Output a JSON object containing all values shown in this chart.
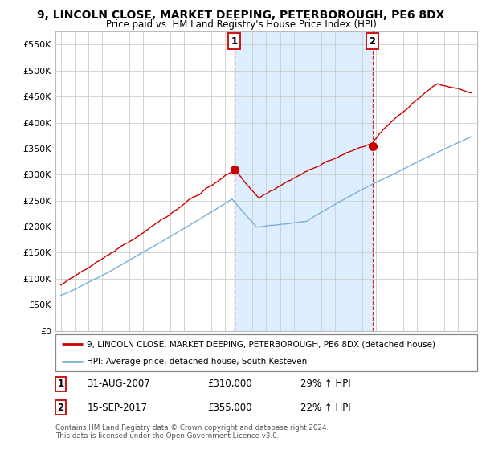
{
  "title": "9, LINCOLN CLOSE, MARKET DEEPING, PETERBOROUGH, PE6 8DX",
  "subtitle": "Price paid vs. HM Land Registry's House Price Index (HPI)",
  "ytick_values": [
    0,
    50000,
    100000,
    150000,
    200000,
    250000,
    300000,
    350000,
    400000,
    450000,
    500000,
    550000
  ],
  "ylim": [
    0,
    575000
  ],
  "red_line_color": "#cc0000",
  "blue_line_color": "#7bafd4",
  "vline_color": "#cc0000",
  "shade_color": "#ddeeff",
  "marker1_year": 2007.67,
  "marker1_value": 310000,
  "marker1_label": "1",
  "marker2_year": 2017.75,
  "marker2_value": 355000,
  "marker2_label": "2",
  "legend_red": "9, LINCOLN CLOSE, MARKET DEEPING, PETERBOROUGH, PE6 8DX (detached house)",
  "legend_blue": "HPI: Average price, detached house, South Kesteven",
  "annotation1_date": "31-AUG-2007",
  "annotation1_price": "£310,000",
  "annotation1_hpi": "29% ↑ HPI",
  "annotation2_date": "15-SEP-2017",
  "annotation2_price": "£355,000",
  "annotation2_hpi": "22% ↑ HPI",
  "footer": "Contains HM Land Registry data © Crown copyright and database right 2024.\nThis data is licensed under the Open Government Licence v3.0.",
  "background_color": "#ffffff",
  "grid_color": "#cccccc",
  "xlim_left": 1994.6,
  "xlim_right": 2025.4
}
